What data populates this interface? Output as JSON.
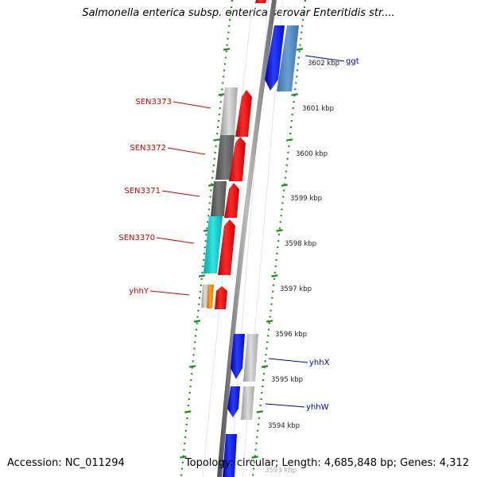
{
  "title": "Salmonella enterica subsp. enterica serovar Enteritidis str....",
  "footer": {
    "accession": "Accession: NC_011294",
    "summary": "Topology: circular; Length: 4,685,848 bp; Genes: 4,312"
  },
  "colors": {
    "backbone": "#8c8c8c",
    "ruler": "#1a8f1a",
    "forward_label": "#cc0000",
    "reverse_label": "#0000bb",
    "cds_forward": "#ff1010",
    "cds_reverse": "#1020ff"
  },
  "ruler": {
    "ticks": [
      "3602 kbp",
      "3601 kbp",
      "3600 kbp",
      "3599 kbp",
      "3598 kbp",
      "3597 kbp",
      "3596 kbp",
      "3595 kbp",
      "3594 kbp",
      "3593 kbp"
    ]
  },
  "gene_labels": {
    "forward": [
      "SEN3373",
      "SEN3372",
      "SEN3371",
      "SEN3370",
      "yhhY"
    ],
    "reverse": [
      "ggt",
      "yhhX",
      "yhhW"
    ]
  }
}
